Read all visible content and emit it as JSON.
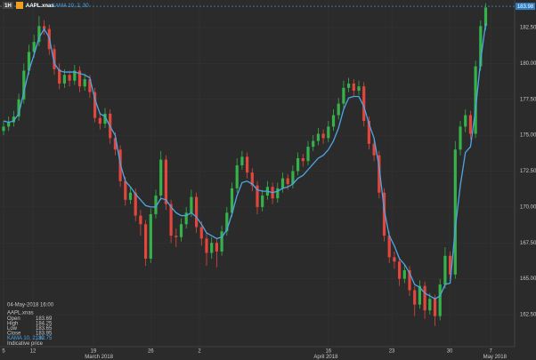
{
  "chart_data": {
    "type": "candlestick",
    "header": {
      "interval": "1H",
      "symbol": "AAPL.xnas",
      "indicator": "KAMA 10, 2, 30"
    },
    "xlim": [
      -0.7,
      100.7
    ],
    "ylim": [
      160.27,
      184.42
    ],
    "yticks": [
      {
        "value": 182.5,
        "label": "182.50"
      },
      {
        "value": 180,
        "label": "180.00"
      },
      {
        "value": 177.5,
        "label": "177.50"
      },
      {
        "value": 175,
        "label": "175.00"
      },
      {
        "value": 172.5,
        "label": "172.50"
      },
      {
        "value": 170,
        "label": "170.00"
      },
      {
        "value": 167.5,
        "label": "167.50"
      },
      {
        "value": 165,
        "label": "165.00"
      },
      {
        "value": 162.5,
        "label": "162.50"
      }
    ],
    "xticks": [
      {
        "value": 0,
        "label": "5"
      },
      {
        "value": 5.8,
        "label": "12"
      },
      {
        "value": 17.7,
        "label": "19"
      },
      {
        "value": 29,
        "label": "26"
      },
      {
        "value": 38.6,
        "label": "2"
      },
      {
        "value": 64,
        "label": "16"
      },
      {
        "value": 76.5,
        "label": "23"
      },
      {
        "value": 87.9,
        "label": "30"
      },
      {
        "value": 96,
        "label": "7"
      }
    ],
    "month_labels": [
      {
        "value": 18.8,
        "label": "March 2018"
      },
      {
        "value": 63.5,
        "label": "April 2018"
      },
      {
        "value": 96.8,
        "label": "May 2018"
      }
    ],
    "grid": true,
    "up_color": "#35b24a",
    "down_color": "#e2463c",
    "current_price": 183.98,
    "open": [
      175.3,
      175.6,
      175.9,
      176.3,
      177.5,
      179.5,
      180.8,
      181.5,
      182.6,
      182.4,
      181.0,
      179.6,
      178.6,
      179.2,
      178.8,
      179.5,
      178.4,
      178.9,
      178.0,
      176.2,
      175.8,
      176.5,
      174.8,
      174.0,
      171.8,
      170.5,
      171.0,
      169.4,
      168.8,
      166.4,
      169.5,
      170.8,
      173.3,
      170.2,
      168.0,
      167.9,
      168.8,
      169.6,
      170.7,
      168.6,
      167.8,
      166.8,
      167.5,
      166.9,
      168.3,
      169.6,
      171.3,
      172.9,
      173.5,
      172.4,
      171.5,
      170.0,
      170.8,
      171.4,
      170.6,
      171.3,
      172.0,
      171.6,
      172.5,
      173.4,
      173.2,
      174.2,
      174.6,
      175.1,
      174.8,
      175.6,
      176.4,
      177.2,
      178.3,
      178.6,
      178.1,
      178.4,
      176.0,
      174.4,
      173.6,
      171.0,
      168.0,
      166.5,
      166.2,
      165.0,
      165.6,
      164.2,
      163.2,
      164.5,
      162.8,
      163.6,
      162.4,
      164.6,
      166.6,
      165.3,
      174.0,
      175.6,
      176.4,
      175.1,
      179.8,
      182.6
    ],
    "high": [
      176.0,
      176.3,
      176.7,
      177.9,
      180.0,
      181.3,
      182.0,
      183.3,
      183.0,
      182.7,
      181.3,
      180.0,
      179.6,
      179.5,
      179.9,
      179.8,
      179.3,
      179.2,
      178.3,
      176.6,
      176.9,
      176.8,
      175.2,
      174.3,
      172.1,
      171.4,
      171.3,
      169.8,
      169.1,
      169.9,
      171.2,
      173.9,
      173.6,
      170.5,
      168.5,
      169.2,
      170.0,
      171.2,
      171.0,
      169.0,
      168.2,
      167.9,
      167.8,
      168.7,
      170.0,
      171.7,
      173.4,
      173.9,
      173.8,
      172.7,
      171.8,
      171.2,
      171.8,
      171.7,
      171.7,
      172.4,
      172.3,
      172.9,
      173.8,
      173.7,
      174.6,
      175.0,
      175.5,
      175.4,
      176.0,
      176.8,
      177.6,
      178.8,
      179.0,
      178.9,
      178.8,
      178.7,
      176.3,
      174.8,
      173.9,
      171.3,
      168.3,
      166.9,
      166.5,
      166.0,
      165.9,
      164.5,
      164.9,
      164.8,
      164.0,
      163.9,
      165.0,
      167.2,
      166.9,
      174.6,
      176.0,
      176.8,
      176.7,
      180.2,
      183.0,
      184.2
    ],
    "low": [
      175.0,
      175.3,
      175.6,
      176.0,
      177.2,
      179.2,
      180.4,
      181.2,
      182.0,
      180.6,
      179.2,
      178.2,
      178.3,
      178.4,
      178.5,
      178.0,
      178.1,
      177.6,
      175.9,
      175.4,
      175.5,
      174.4,
      173.6,
      171.4,
      170.1,
      170.2,
      169.0,
      168.0,
      165.9,
      166.1,
      169.2,
      170.5,
      169.8,
      167.5,
      167.2,
      167.6,
      168.5,
      169.3,
      168.2,
      167.3,
      165.9,
      166.4,
      165.8,
      166.6,
      168.0,
      169.3,
      171.0,
      172.6,
      172.0,
      171.1,
      169.5,
      169.7,
      170.5,
      170.2,
      170.3,
      171.0,
      171.2,
      171.3,
      172.2,
      172.8,
      172.9,
      173.9,
      174.3,
      174.4,
      174.5,
      175.3,
      176.1,
      176.9,
      178.0,
      177.7,
      177.8,
      175.6,
      174.0,
      173.2,
      170.6,
      167.6,
      166.1,
      165.7,
      164.5,
      164.7,
      163.8,
      162.4,
      162.9,
      162.2,
      162.5,
      161.7,
      162.1,
      164.3,
      164.9,
      165.0,
      173.6,
      175.2,
      174.7,
      174.8,
      179.5,
      182.3
    ],
    "close": [
      175.6,
      175.9,
      176.3,
      177.5,
      179.5,
      180.8,
      181.5,
      182.6,
      182.4,
      181.0,
      179.6,
      178.6,
      179.2,
      178.8,
      179.5,
      178.4,
      178.9,
      178.0,
      176.2,
      175.8,
      176.5,
      174.8,
      174.0,
      171.8,
      170.5,
      171.0,
      169.4,
      168.8,
      166.4,
      169.5,
      170.8,
      173.3,
      170.2,
      168.0,
      167.9,
      168.8,
      169.6,
      170.7,
      168.6,
      167.8,
      166.8,
      167.5,
      166.9,
      168.3,
      169.6,
      171.3,
      172.9,
      173.5,
      172.4,
      171.5,
      170.0,
      170.8,
      171.4,
      170.6,
      171.3,
      172.0,
      171.6,
      172.5,
      173.4,
      173.2,
      174.2,
      174.6,
      175.1,
      174.8,
      175.6,
      176.4,
      177.2,
      178.3,
      178.6,
      178.1,
      178.4,
      176.0,
      174.4,
      173.6,
      171.0,
      168.0,
      166.5,
      166.2,
      165.0,
      165.6,
      164.2,
      163.2,
      164.5,
      162.8,
      163.6,
      162.4,
      164.6,
      166.6,
      165.3,
      174.0,
      175.6,
      176.4,
      175.1,
      179.8,
      182.6,
      183.9
    ],
    "kama": {
      "name": "KAMA 10, 2, 30",
      "color": "#4ea6e6",
      "values": [
        176.0,
        175.9,
        176.0,
        176.5,
        178.0,
        179.5,
        180.6,
        181.8,
        182.4,
        181.8,
        180.0,
        179.5,
        179.4,
        179.4,
        179.4,
        179.3,
        179.2,
        179.0,
        177.5,
        176.5,
        176.3,
        175.6,
        175.0,
        173.0,
        171.8,
        171.4,
        170.9,
        170.5,
        170.1,
        170.0,
        170.0,
        170.6,
        170.5,
        170.0,
        169.6,
        169.4,
        169.4,
        169.6,
        169.3,
        168.8,
        168.2,
        168.0,
        167.8,
        167.9,
        168.4,
        169.5,
        170.8,
        171.7,
        171.8,
        171.6,
        171.2,
        171.1,
        171.1,
        171.0,
        171.1,
        171.3,
        171.4,
        171.6,
        172.0,
        172.2,
        172.6,
        173.0,
        173.4,
        173.6,
        174.0,
        174.6,
        175.5,
        176.8,
        177.6,
        177.7,
        177.7,
        177.0,
        175.8,
        174.8,
        172.8,
        169.8,
        168.0,
        167.3,
        166.4,
        166.0,
        165.4,
        164.6,
        164.4,
        164.0,
        163.8,
        163.6,
        163.8,
        164.6,
        164.7,
        168.5,
        171.5,
        173.8,
        174.2,
        176.8,
        180.2,
        182.8
      ]
    },
    "info_panel": {
      "datetime": "04-May-2018 16:00",
      "symbol": "AAPL.xnas",
      "rows": [
        [
          "Open",
          "183.69"
        ],
        [
          "High",
          "184.25"
        ],
        [
          "Low",
          "183.65"
        ],
        [
          "Close",
          "183.95"
        ]
      ],
      "kama": [
        "KAMA 10, 2, 30",
        "182.75"
      ],
      "note": "Indicative price"
    }
  }
}
